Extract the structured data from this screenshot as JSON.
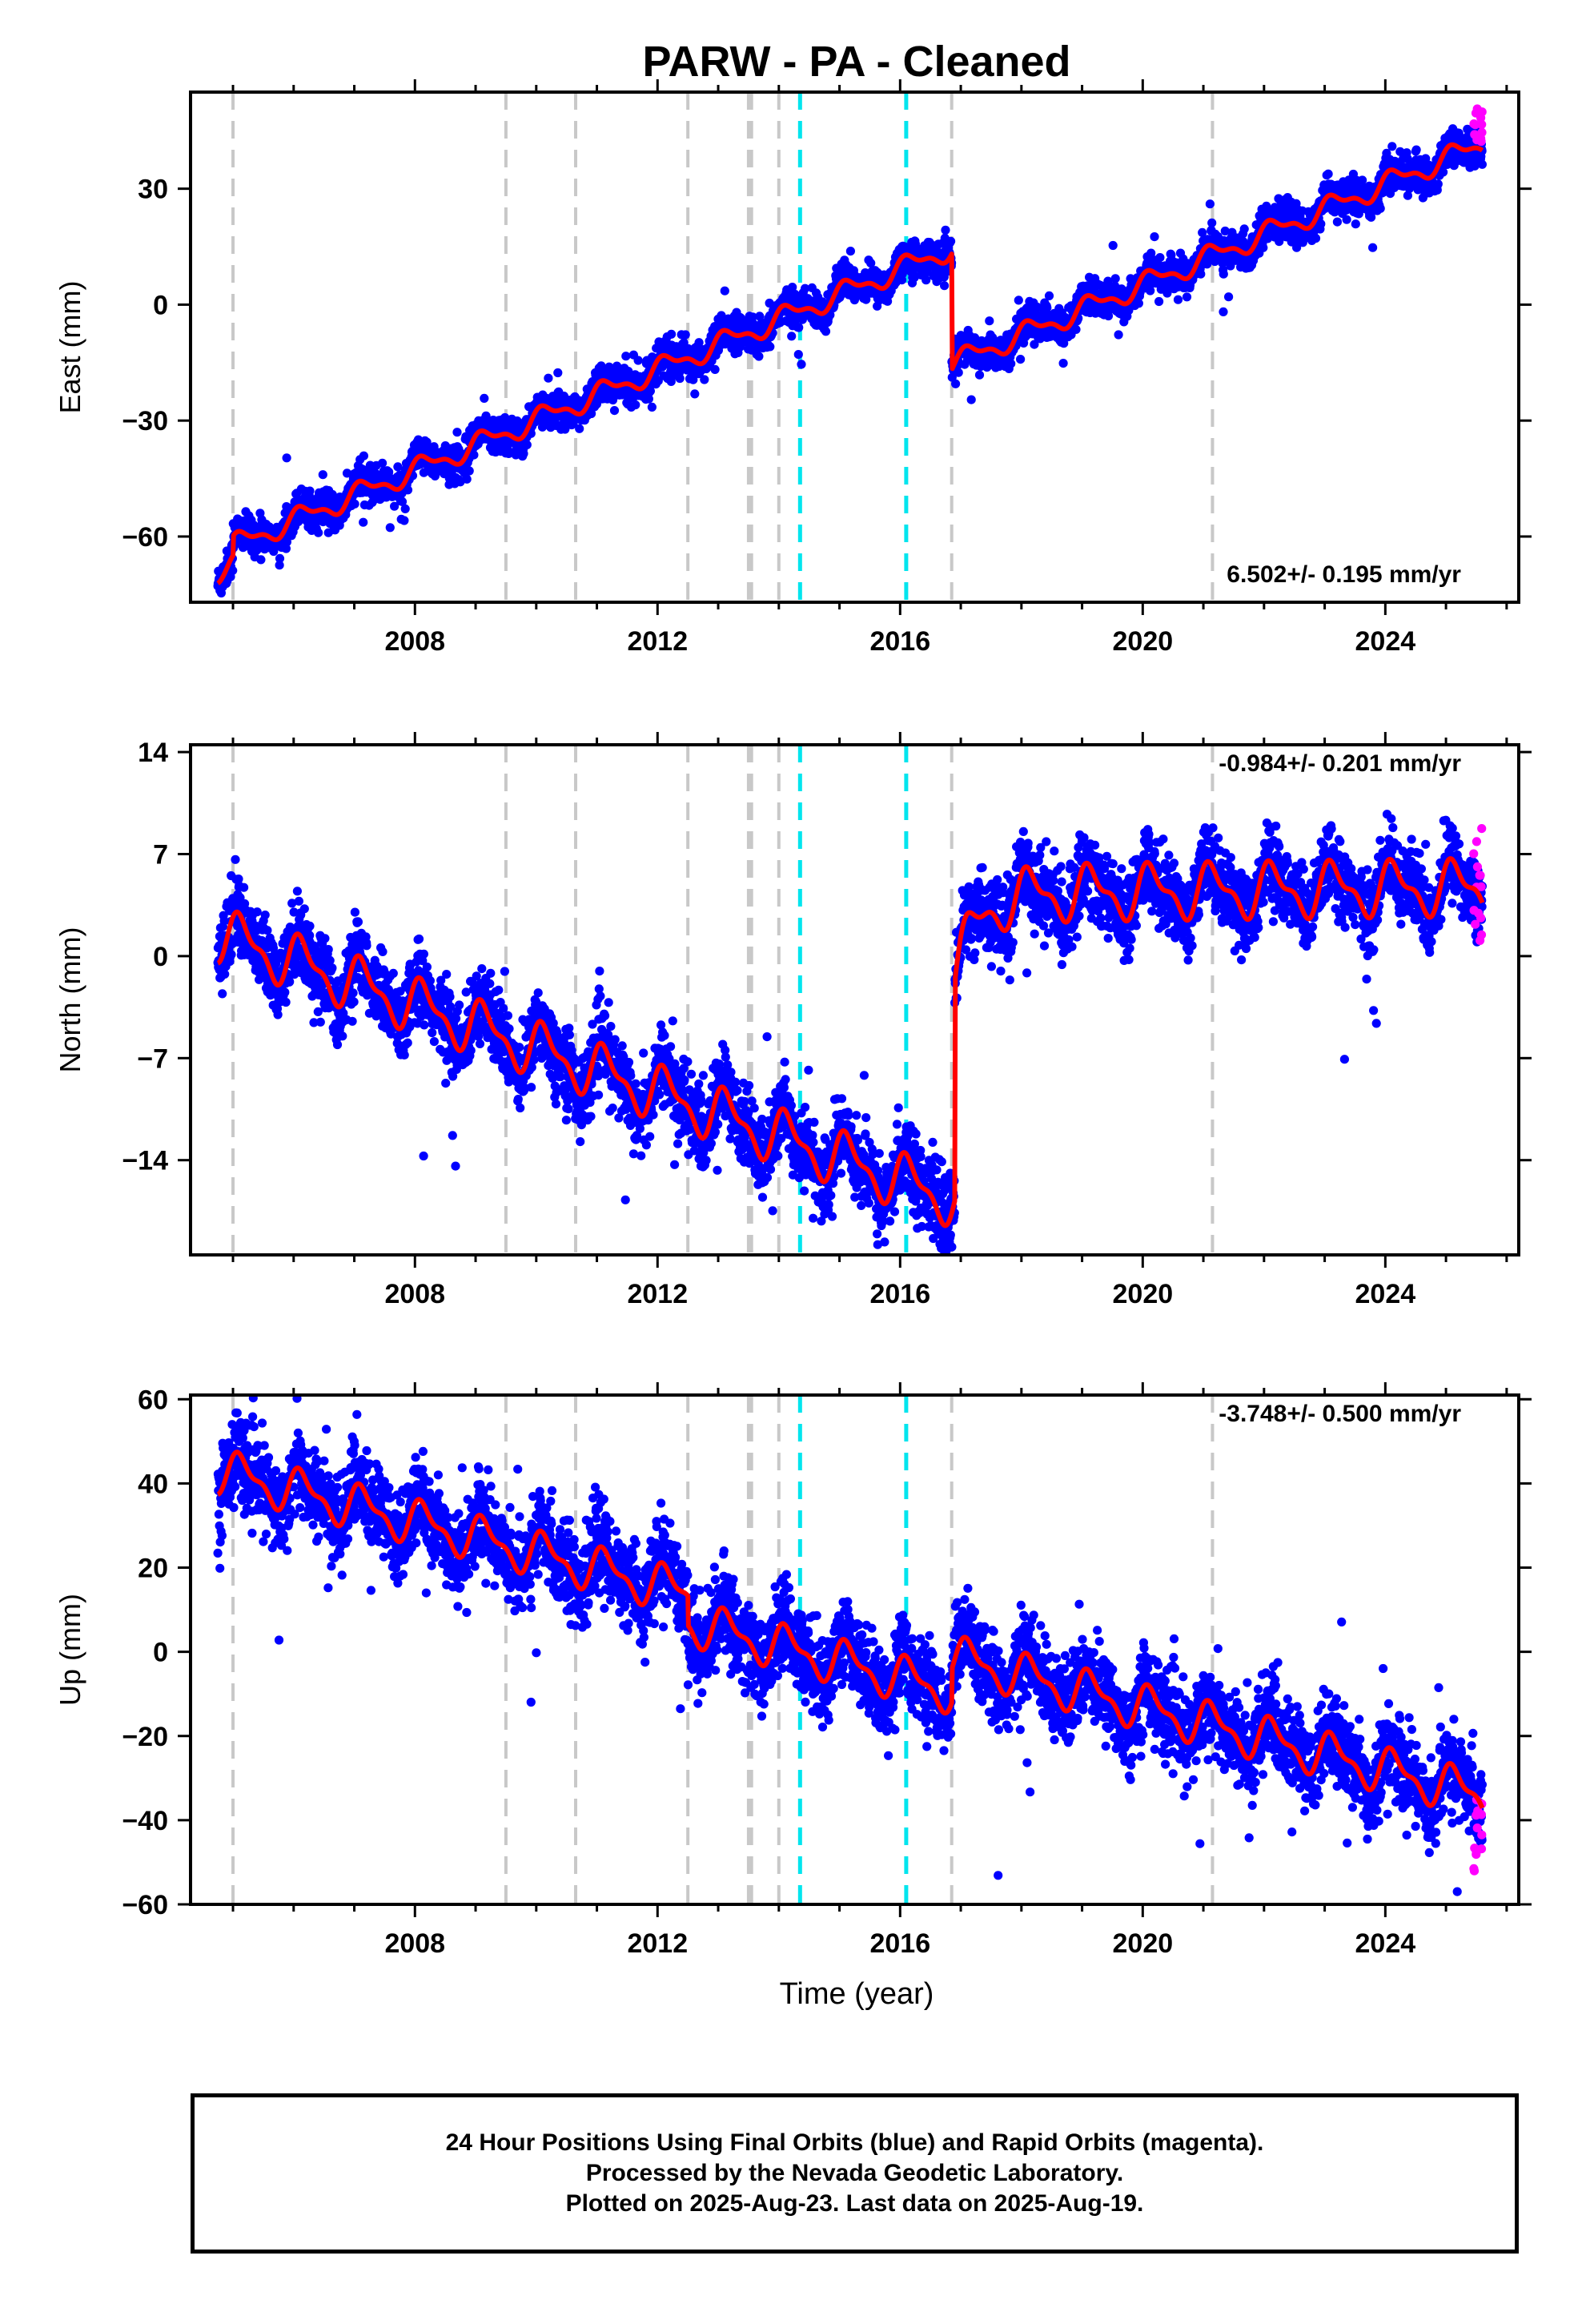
{
  "title": "PARW  - PA - Cleaned",
  "xlabel": "Time (year)",
  "colors": {
    "final": "#0000ff",
    "rapid": "#ff00ff",
    "model": "#ff0000",
    "event_gray": "#c8c8c8",
    "event_cyan": "#00e5ee"
  },
  "caption": {
    "line1": "24 Hour Positions Using Final Orbits (blue) and Rapid Orbits (magenta).",
    "line2": "Processed by the Nevada Geodetic Laboratory.",
    "line3": "Plotted on 2025-Aug-23. Last data on 2025-Aug-19."
  },
  "chart_data": [
    {
      "type": "scatter",
      "panel": "east",
      "ylabel": "East (mm)",
      "rate_text": "6.502+/- 0.195 mm/yr",
      "xlim": [
        2004.3,
        2026.2
      ],
      "ylim": [
        -77,
        55
      ],
      "xticks": [
        2008,
        2012,
        2016,
        2020,
        2024
      ],
      "yticks": [
        -60,
        -30,
        0,
        30
      ],
      "events_gray": [
        2005.0,
        2009.5,
        2010.65,
        2012.5,
        2013.5,
        2013.55,
        2014.0,
        2016.85,
        2021.15
      ],
      "events_cyan": [
        2014.35,
        2016.1
      ],
      "model": {
        "rate": 6.502,
        "offset_at_start": -69,
        "t_start": 2004.75,
        "t_end": 2025.6,
        "annual_amp": 2.5,
        "steps": [
          {
            "t": 2005.0,
            "dy": 5
          },
          {
            "t": 2016.85,
            "dy": -30
          }
        ],
        "noise": 2.2
      },
      "rapid_range": [
        42,
        52
      ]
    },
    {
      "type": "scatter",
      "panel": "north",
      "ylabel": "North (mm)",
      "rate_text": "-0.984+/- 0.201 mm/yr",
      "xlim": [
        2004.3,
        2026.2
      ],
      "ylim": [
        -20.5,
        14.5
      ],
      "xticks": [
        2008,
        2012,
        2016,
        2020,
        2024
      ],
      "yticks": [
        -14,
        -7,
        0,
        7,
        14
      ],
      "events_gray": [
        2005.0,
        2009.5,
        2010.65,
        2012.5,
        2013.5,
        2013.55,
        2014.0,
        2016.85,
        2021.15
      ],
      "events_cyan": [
        2014.35,
        2016.1
      ],
      "model": {
        "rate": -1.5,
        "offset_at_start": 1.5,
        "t_start": 2004.75,
        "t_end": 2025.6,
        "annual_amp": 1.6,
        "steps": [
          {
            "t": 2016.9,
            "dy": 15
          }
        ],
        "postseismic": {
          "t": 2016.9,
          "amp": 6.0,
          "tau": 0.35
        },
        "late_rate": 0.05,
        "noise": 1.3
      },
      "rapid_range": [
        1,
        9
      ]
    },
    {
      "type": "scatter",
      "panel": "up",
      "ylabel": "Up (mm)",
      "rate_text": "-3.748+/- 0.500 mm/yr",
      "xlim": [
        2004.3,
        2026.2
      ],
      "ylim": [
        -60,
        61
      ],
      "xticks": [
        2008,
        2012,
        2016,
        2020,
        2024
      ],
      "yticks": [
        -60,
        -40,
        -20,
        0,
        20,
        40,
        60
      ],
      "events_gray": [
        2005.0,
        2009.5,
        2010.65,
        2012.5,
        2013.5,
        2013.55,
        2014.0,
        2016.85,
        2021.15
      ],
      "events_cyan": [
        2014.35,
        2016.1
      ],
      "model": {
        "rate": -3.748,
        "offset_at_start": 43,
        "t_start": 2004.75,
        "t_end": 2025.6,
        "annual_amp": 4.5,
        "steps": [
          {
            "t": 2012.5,
            "dy": -7
          },
          {
            "t": 2016.85,
            "dy": 8
          }
        ],
        "noise": 5.0
      },
      "rapid_range": [
        -54,
        -33
      ]
    }
  ]
}
